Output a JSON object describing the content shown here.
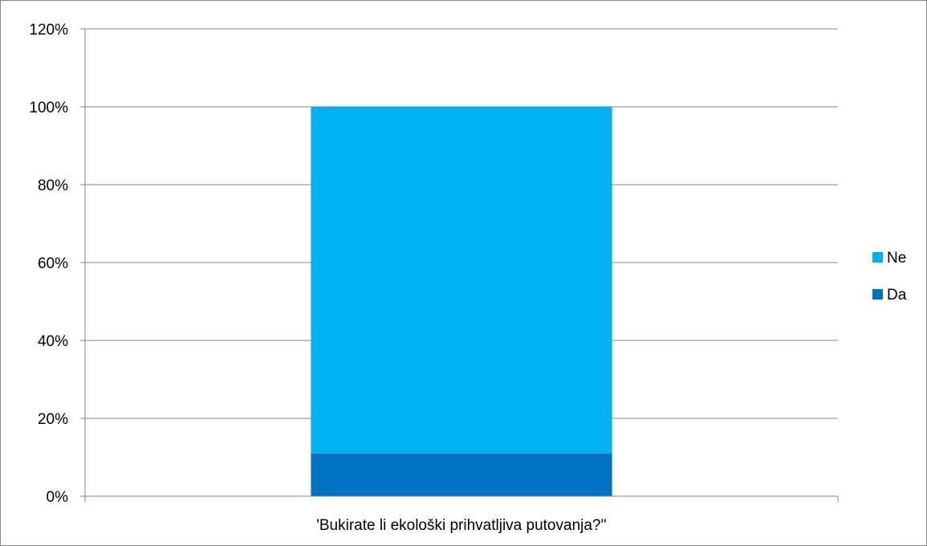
{
  "chart_data": {
    "type": "bar",
    "stacked": true,
    "categories": [
      "'Bukirate li ekološki prihvatljiva putovanja?''"
    ],
    "series": [
      {
        "name": "Da",
        "values": [
          11
        ],
        "color": "#0070C0"
      },
      {
        "name": "Ne",
        "values": [
          89
        ],
        "color": "#00B0F0"
      }
    ],
    "ylim": [
      0,
      120
    ],
    "yticks": [
      0,
      20,
      40,
      60,
      80,
      100,
      120
    ],
    "ytick_labels": [
      "0%",
      "20%",
      "40%",
      "60%",
      "80%",
      "100%",
      "120%"
    ],
    "y_unit": "%",
    "grid": true,
    "legend_position": "right",
    "legend_order": [
      "Ne",
      "Da"
    ]
  }
}
